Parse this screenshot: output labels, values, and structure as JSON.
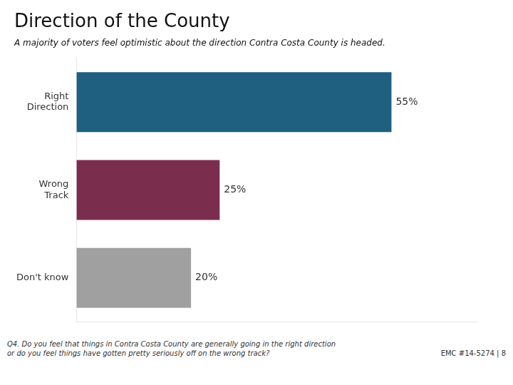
{
  "chart_data": {
    "type": "bar",
    "orientation": "horizontal",
    "title": "Direction of the County",
    "subtitle": "A majority of voters feel optimistic about the direction Contra Costa County is headed.",
    "categories": [
      "Right\nDirection",
      "Wrong\nTrack",
      "Don't know"
    ],
    "values": [
      55,
      25,
      20
    ],
    "value_labels": [
      "55%",
      "25%",
      "20%"
    ],
    "colors": [
      "#1f6080",
      "#7b2d4e",
      "#a0a0a0"
    ],
    "xlim": [
      0,
      70
    ],
    "data_labels": true,
    "tick_labels": "y",
    "grid": false,
    "annotations": [
      "Q4. Do you feel that things in Contra Costa County are generally going in the right direction\nor do you feel things have gotten pretty seriously off on the wrong track?",
      "EMC #14-5274 | 8"
    ]
  }
}
